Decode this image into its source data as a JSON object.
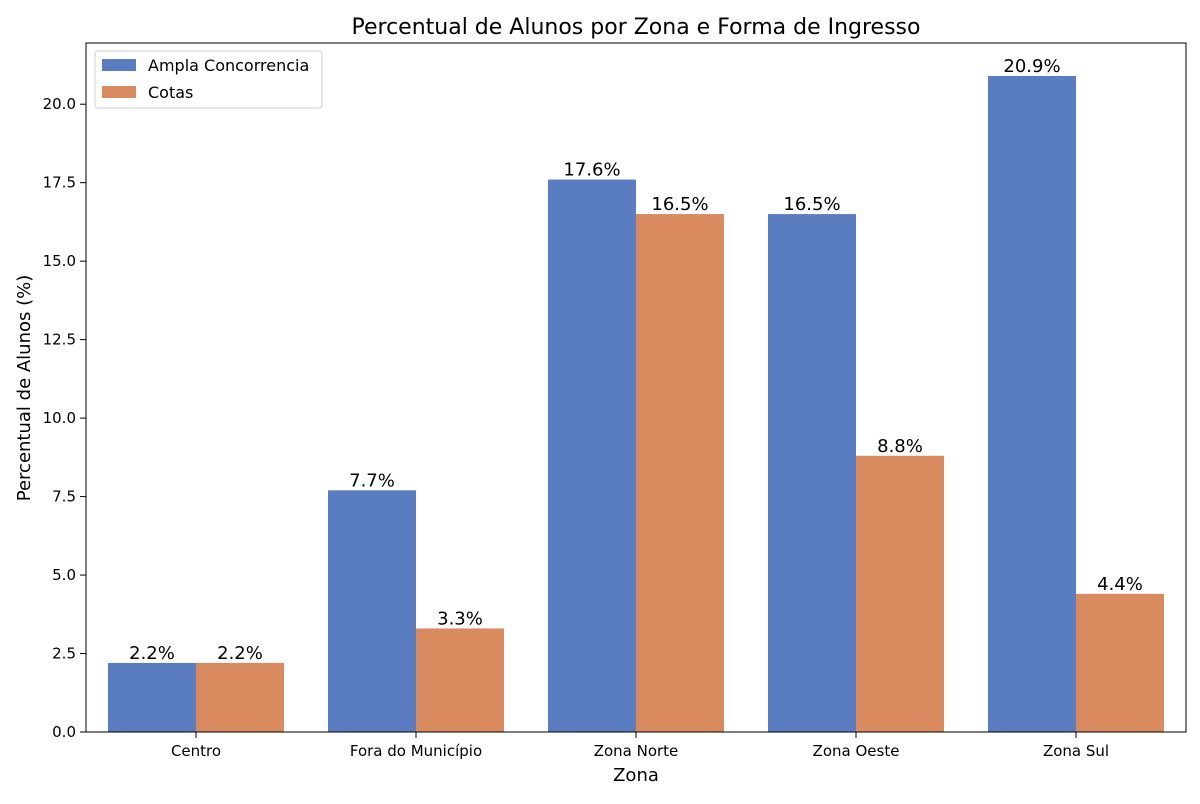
{
  "chart_data": {
    "type": "bar",
    "title": "Percentual de Alunos por Zona e Forma de Ingresso",
    "xlabel": "Zona",
    "ylabel": "Percentual de Alunos (%)",
    "categories": [
      "Centro",
      "Fora do Município",
      "Zona Norte",
      "Zona Oeste",
      "Zona Sul"
    ],
    "series": [
      {
        "name": "Ampla Concorrencia",
        "color": "#5a7dc1",
        "values": [
          2.2,
          7.7,
          17.6,
          16.5,
          20.9
        ],
        "labels": [
          "2.2%",
          "7.7%",
          "17.6%",
          "16.5%",
          "20.9%"
        ]
      },
      {
        "name": "Cotas",
        "color": "#d98b5f",
        "values": [
          2.2,
          3.3,
          16.5,
          8.8,
          4.4
        ],
        "labels": [
          "2.2%",
          "3.3%",
          "16.5%",
          "8.8%",
          "4.4%"
        ]
      }
    ],
    "ylim": [
      0,
      21.95
    ],
    "yticks": [
      0.0,
      2.5,
      5.0,
      7.5,
      10.0,
      12.5,
      15.0,
      17.5,
      20.0
    ],
    "ytick_labels": [
      "0.0",
      "2.5",
      "5.0",
      "7.5",
      "10.0",
      "12.5",
      "15.0",
      "17.5",
      "20.0"
    ],
    "grid": false,
    "legend_position": "top-left"
  }
}
